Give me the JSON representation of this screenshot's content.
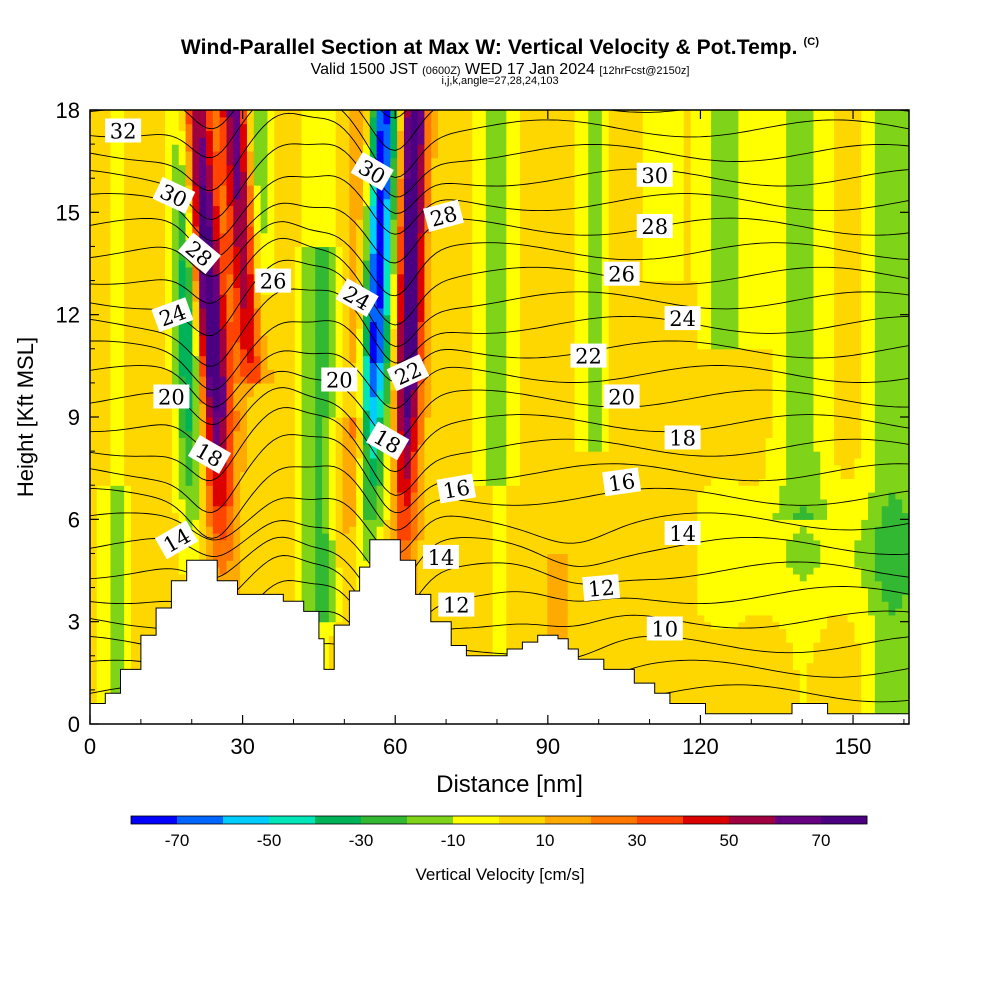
{
  "title": {
    "main": "Wind-Parallel Section at Max W: Vertical Velocity & Pot.Temp.",
    "copyright": "(C)",
    "valid_prefix": "Valid 1500 JST",
    "utc": "(0600Z)",
    "valid_date": "WED 17 Jan 2024",
    "forecast": "[12hrFcst@2150z]",
    "indices": "i,j,k,angle=27,28,24,103"
  },
  "chart_data": {
    "type": "heatmap",
    "xlabel": "Distance [nm]",
    "ylabel": "Height [Kft MSL]",
    "xlim": [
      0,
      161
    ],
    "ylim": [
      0,
      18
    ],
    "xticks": [
      0,
      30,
      60,
      90,
      120,
      150
    ],
    "yticks": [
      0,
      3,
      6,
      9,
      12,
      15,
      18
    ],
    "colorbar": {
      "label": "Vertical Velocity [cm/s]",
      "bounds": [
        -80,
        -70,
        -60,
        -50,
        -40,
        -30,
        -20,
        -10,
        0,
        10,
        20,
        30,
        40,
        50,
        60,
        70,
        80
      ],
      "colors": [
        "#0000ff",
        "#0066ff",
        "#00ccff",
        "#00e6b8",
        "#00b359",
        "#33b833",
        "#7fd41a",
        "#ffff00",
        "#ffd700",
        "#ffaa00",
        "#ff7700",
        "#ff4400",
        "#dd0000",
        "#a00040",
        "#660080",
        "#4b0082"
      ],
      "tick_labels": [
        "-70",
        "-50",
        "-30",
        "-10",
        "10",
        "30",
        "50",
        "70"
      ],
      "tick_values": [
        -70,
        -50,
        -30,
        -10,
        10,
        30,
        50,
        70
      ]
    },
    "terrain_heights_kft": [
      [
        0,
        0.6
      ],
      [
        3,
        0.9
      ],
      [
        6,
        1.6
      ],
      [
        10,
        2.6
      ],
      [
        13,
        3.4
      ],
      [
        16,
        4.2
      ],
      [
        19,
        4.8
      ],
      [
        25,
        4.2
      ],
      [
        29,
        3.8
      ],
      [
        38,
        3.6
      ],
      [
        42,
        3.3
      ],
      [
        45,
        2.5
      ],
      [
        46,
        1.6
      ],
      [
        48,
        2.9
      ],
      [
        51,
        3.9
      ],
      [
        53,
        4.6
      ],
      [
        55,
        5.4
      ],
      [
        59,
        5.4
      ],
      [
        61,
        4.8
      ],
      [
        64,
        3.8
      ],
      [
        67,
        3.0
      ],
      [
        71,
        2.3
      ],
      [
        74,
        2.0
      ],
      [
        82,
        2.2
      ],
      [
        85,
        2.4
      ],
      [
        88,
        2.6
      ],
      [
        92,
        2.5
      ],
      [
        94,
        2.2
      ],
      [
        96,
        1.9
      ],
      [
        101,
        1.6
      ],
      [
        107,
        1.2
      ],
      [
        111,
        0.9
      ],
      [
        114,
        0.6
      ],
      [
        119,
        0.6
      ],
      [
        121,
        0.3
      ],
      [
        136,
        0.3
      ],
      [
        138,
        0.6
      ],
      [
        143,
        0.6
      ],
      [
        145,
        0.3
      ],
      [
        161,
        0.3
      ]
    ],
    "isentrope_labels": [
      {
        "text": "32",
        "x": 6.5,
        "y": 17.4,
        "angle": 0
      },
      {
        "text": "30",
        "x": 16.5,
        "y": 15.5,
        "angle": 25
      },
      {
        "text": "28",
        "x": 21.5,
        "y": 13.8,
        "angle": 40
      },
      {
        "text": "26",
        "x": 36,
        "y": 13.0,
        "angle": 0
      },
      {
        "text": "24",
        "x": 16.2,
        "y": 12.0,
        "angle": -20
      },
      {
        "text": "20",
        "x": 16.0,
        "y": 9.6,
        "angle": 0
      },
      {
        "text": "18",
        "x": 23.5,
        "y": 7.9,
        "angle": 30
      },
      {
        "text": "14",
        "x": 17,
        "y": 5.4,
        "angle": -30
      },
      {
        "text": "30",
        "x": 55.5,
        "y": 16.2,
        "angle": 30
      },
      {
        "text": "28",
        "x": 69.5,
        "y": 14.9,
        "angle": -15
      },
      {
        "text": "24",
        "x": 52.5,
        "y": 12.5,
        "angle": 30
      },
      {
        "text": "20",
        "x": 49.0,
        "y": 10.1,
        "angle": 0
      },
      {
        "text": "22",
        "x": 62.5,
        "y": 10.3,
        "angle": -25
      },
      {
        "text": "18",
        "x": 58.5,
        "y": 8.3,
        "angle": 30
      },
      {
        "text": "16",
        "x": 72,
        "y": 6.9,
        "angle": -10
      },
      {
        "text": "14",
        "x": 69,
        "y": 4.9,
        "angle": 0
      },
      {
        "text": "12",
        "x": 72,
        "y": 3.5,
        "angle": 0
      },
      {
        "text": "30",
        "x": 111,
        "y": 16.1,
        "angle": 0
      },
      {
        "text": "28",
        "x": 111,
        "y": 14.6,
        "angle": 0
      },
      {
        "text": "26",
        "x": 104.5,
        "y": 13.2,
        "angle": 0
      },
      {
        "text": "24",
        "x": 116.5,
        "y": 11.9,
        "angle": 0
      },
      {
        "text": "22",
        "x": 98,
        "y": 10.8,
        "angle": 0
      },
      {
        "text": "20",
        "x": 104.5,
        "y": 9.6,
        "angle": 0
      },
      {
        "text": "18",
        "x": 116.5,
        "y": 8.4,
        "angle": 0
      },
      {
        "text": "16",
        "x": 104.5,
        "y": 7.1,
        "angle": -8
      },
      {
        "text": "14",
        "x": 116.5,
        "y": 5.6,
        "angle": 0
      },
      {
        "text": "12",
        "x": 100.5,
        "y": 4.0,
        "angle": -5
      },
      {
        "text": "10",
        "x": 113,
        "y": 2.8,
        "angle": 0
      }
    ]
  }
}
